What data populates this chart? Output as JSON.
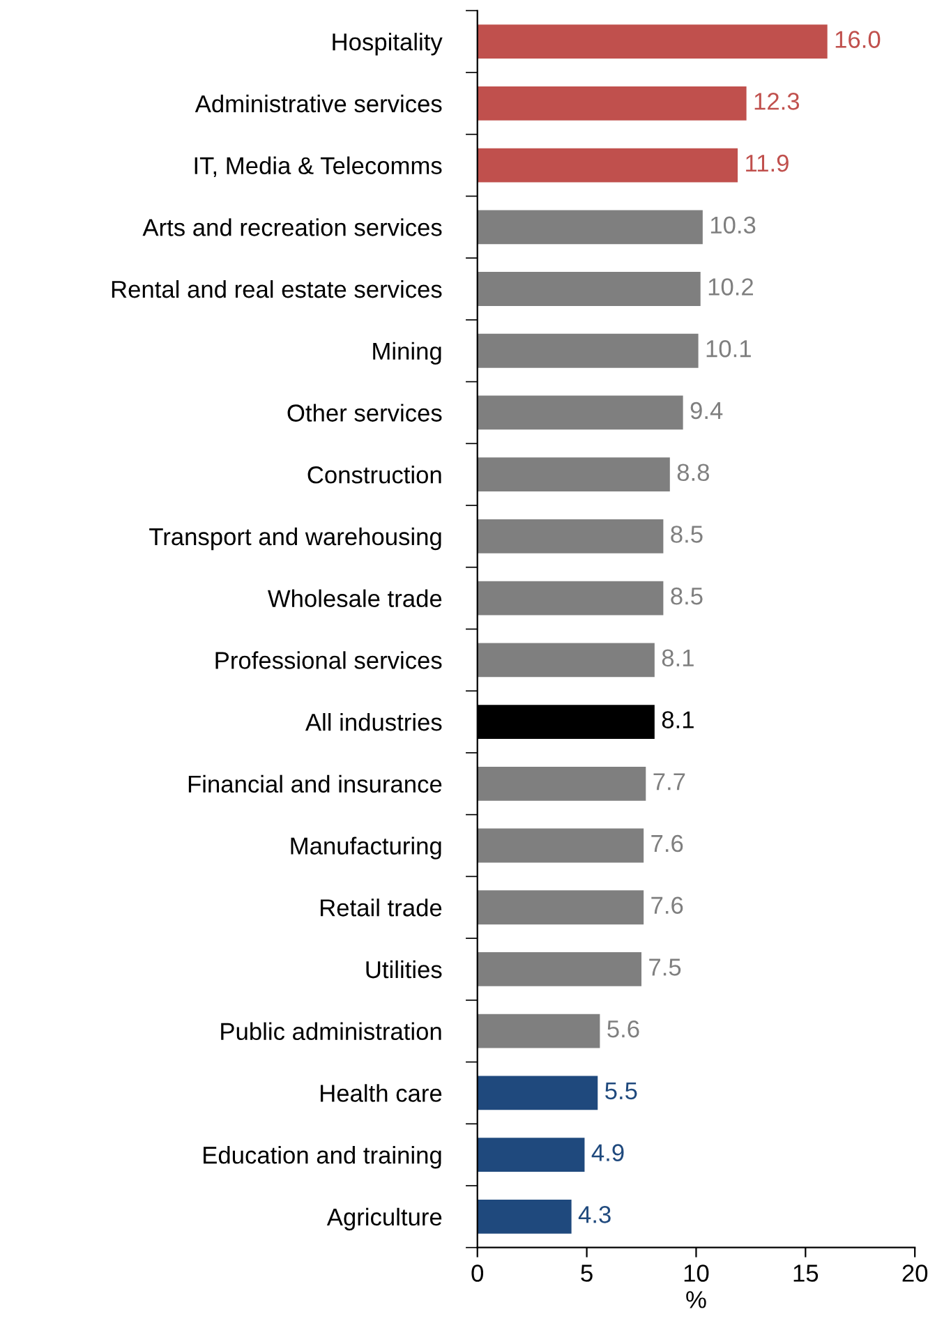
{
  "chart_data": {
    "type": "bar",
    "orientation": "horizontal",
    "xlabel": "%",
    "categories": [
      "Hospitality",
      "Administrative services",
      "IT, Media & Telecomms",
      "Arts and recreation services",
      "Rental and real estate services",
      "Mining",
      "Other services",
      "Construction",
      "Transport and warehousing",
      "Wholesale trade",
      "Professional services",
      "All industries",
      "Financial and insurance",
      "Manufacturing",
      "Retail trade",
      "Utilities",
      "Public administration",
      "Health care",
      "Education and training",
      "Agriculture"
    ],
    "values": [
      16.0,
      12.3,
      11.9,
      10.3,
      10.2,
      10.1,
      9.4,
      8.8,
      8.5,
      8.5,
      8.1,
      8.1,
      7.7,
      7.6,
      7.6,
      7.5,
      5.6,
      5.5,
      4.9,
      4.3
    ],
    "value_labels": [
      "16.0",
      "12.3",
      "11.9",
      "10.3",
      "10.2",
      "10.1",
      "9.4",
      "8.8",
      "8.5",
      "8.5",
      "8.1",
      "8.1",
      "7.7",
      "7.6",
      "7.6",
      "7.5",
      "5.6",
      "5.5",
      "4.9",
      "4.3"
    ],
    "colors": [
      "#c0504d",
      "#c0504d",
      "#c0504d",
      "#7f7f7f",
      "#7f7f7f",
      "#7f7f7f",
      "#7f7f7f",
      "#7f7f7f",
      "#7f7f7f",
      "#7f7f7f",
      "#7f7f7f",
      "#000000",
      "#7f7f7f",
      "#7f7f7f",
      "#7f7f7f",
      "#7f7f7f",
      "#7f7f7f",
      "#1f497d",
      "#1f497d",
      "#1f497d"
    ],
    "xlim": [
      0,
      20
    ],
    "xticks": [
      0,
      5,
      10,
      15,
      20
    ],
    "grid": false
  }
}
